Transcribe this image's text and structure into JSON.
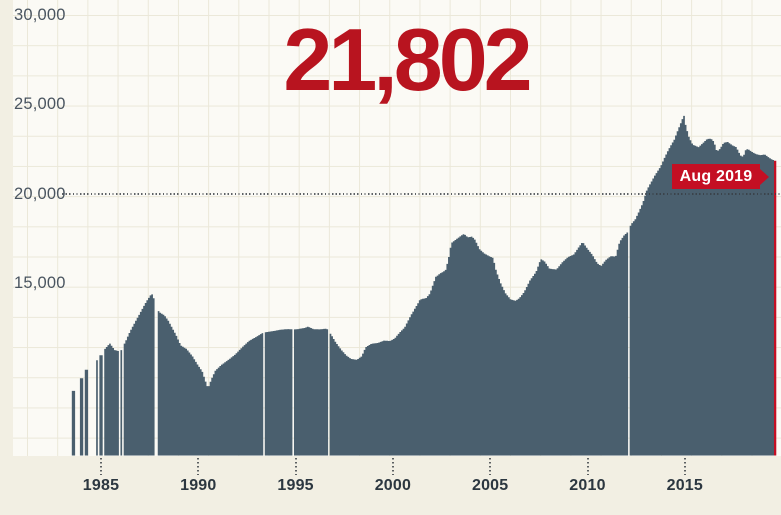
{
  "headline": {
    "value": "21,802",
    "color": "#b8141f"
  },
  "annotation": {
    "label": "Aug 2019",
    "color": "#c40f23",
    "text_color": "#ffffff"
  },
  "colors": {
    "page_background": "#f2efe3",
    "plot_background": "#fbfaf5",
    "grid": "#ebe8d9",
    "bar": "#4a5f6e",
    "highlight": "#c40f23",
    "y_label": "#4a5560",
    "x_label": "#2c3740"
  },
  "chart_data": {
    "type": "area",
    "title": "21,802",
    "x_unit": "year (monthly bars)",
    "y_ticks": [
      {
        "label": "30,000",
        "value": 30000
      },
      {
        "label": "25,000",
        "value": 25000
      },
      {
        "label": "20,000",
        "value": 20000
      },
      {
        "label": "15,000",
        "value": 15000
      }
    ],
    "x_ticks": [
      {
        "label": "1985",
        "value": 1985
      },
      {
        "label": "1990",
        "value": 1990
      },
      {
        "label": "1995",
        "value": 1995
      },
      {
        "label": "2000",
        "value": 2000
      },
      {
        "label": "2005",
        "value": 2005
      },
      {
        "label": "2010",
        "value": 2010
      },
      {
        "label": "2015",
        "value": 2015
      }
    ],
    "reference_value": 20000,
    "ylim": [
      5370,
      30840
    ],
    "domain": [
      1983.5,
      2019.7
    ],
    "last_point": {
      "x": 2019.625,
      "label": "Aug 2019",
      "value": 21802
    },
    "legend": "none",
    "grid": "on",
    "gaps": [
      [
        1983.67,
        1983.94
      ],
      [
        1984.1,
        1984.15
      ],
      [
        1984.35,
        1984.71
      ],
      [
        1984.85,
        1984.9
      ],
      [
        1985.09,
        1985.185
      ],
      [
        1985.93,
        1985.99
      ],
      [
        1986.1,
        1986.16
      ],
      [
        1987.77,
        1987.945
      ],
      [
        1993.335,
        1993.395
      ],
      [
        1994.845,
        1994.915
      ],
      [
        1996.68,
        1996.735
      ],
      [
        2012.06,
        2012.155
      ]
    ],
    "keypoints": [
      [
        1983.48,
        8960
      ],
      [
        1983.7,
        8960
      ],
      [
        1983.95,
        9670
      ],
      [
        1984.13,
        9670
      ],
      [
        1984.17,
        10150
      ],
      [
        1984.34,
        10150
      ],
      [
        1984.72,
        10680
      ],
      [
        1984.91,
        10680
      ],
      [
        1984.94,
        10960
      ],
      [
        1985.08,
        10960
      ],
      [
        1985.2,
        11300
      ],
      [
        1985.45,
        11620
      ],
      [
        1985.7,
        11250
      ],
      [
        1986.0,
        11150
      ],
      [
        1986.25,
        11700
      ],
      [
        1986.5,
        12300
      ],
      [
        1986.8,
        12900
      ],
      [
        1987.1,
        13500
      ],
      [
        1987.35,
        14000
      ],
      [
        1987.52,
        14260
      ],
      [
        1987.6,
        14430
      ],
      [
        1987.7,
        14150
      ],
      [
        1987.8,
        14100
      ],
      [
        1987.97,
        13380
      ],
      [
        1988.25,
        13200
      ],
      [
        1988.45,
        12900
      ],
      [
        1988.65,
        12500
      ],
      [
        1988.85,
        12100
      ],
      [
        1989.1,
        11500
      ],
      [
        1989.4,
        11300
      ],
      [
        1989.7,
        10900
      ],
      [
        1989.95,
        10450
      ],
      [
        1990.2,
        10050
      ],
      [
        1990.4,
        9400
      ],
      [
        1990.5,
        9110
      ],
      [
        1990.67,
        9600
      ],
      [
        1990.88,
        10100
      ],
      [
        1991.17,
        10400
      ],
      [
        1991.55,
        10700
      ],
      [
        1991.9,
        11000
      ],
      [
        1992.25,
        11400
      ],
      [
        1992.6,
        11750
      ],
      [
        1993.0,
        12000
      ],
      [
        1993.3,
        12200
      ],
      [
        1993.5,
        12250
      ],
      [
        1993.8,
        12300
      ],
      [
        1994.2,
        12380
      ],
      [
        1994.6,
        12420
      ],
      [
        1995.0,
        12400
      ],
      [
        1995.45,
        12480
      ],
      [
        1995.65,
        12560
      ],
      [
        1995.9,
        12420
      ],
      [
        1996.25,
        12400
      ],
      [
        1996.6,
        12450
      ],
      [
        1996.8,
        12150
      ],
      [
        1997.05,
        11700
      ],
      [
        1997.35,
        11250
      ],
      [
        1997.6,
        10950
      ],
      [
        1997.85,
        10750
      ],
      [
        1998.15,
        10700
      ],
      [
        1998.4,
        10900
      ],
      [
        1998.6,
        11400
      ],
      [
        1998.9,
        11600
      ],
      [
        1999.25,
        11650
      ],
      [
        1999.55,
        11780
      ],
      [
        1999.85,
        11750
      ],
      [
        2000.1,
        11900
      ],
      [
        2000.35,
        12230
      ],
      [
        2000.6,
        12500
      ],
      [
        2000.9,
        13140
      ],
      [
        2001.15,
        13600
      ],
      [
        2001.4,
        14080
      ],
      [
        2001.7,
        14150
      ],
      [
        2001.9,
        14400
      ],
      [
        2002.2,
        15340
      ],
      [
        2002.45,
        15550
      ],
      [
        2002.7,
        15700
      ],
      [
        2002.85,
        16300
      ],
      [
        2003.0,
        17230
      ],
      [
        2003.2,
        17400
      ],
      [
        2003.45,
        17600
      ],
      [
        2003.65,
        17750
      ],
      [
        2003.85,
        17550
      ],
      [
        2004.05,
        17600
      ],
      [
        2004.2,
        17450
      ],
      [
        2004.45,
        16900
      ],
      [
        2004.7,
        16650
      ],
      [
        2004.95,
        16500
      ],
      [
        2005.15,
        16400
      ],
      [
        2005.3,
        15700
      ],
      [
        2005.55,
        14950
      ],
      [
        2005.8,
        14400
      ],
      [
        2006.05,
        14080
      ],
      [
        2006.3,
        14000
      ],
      [
        2006.5,
        14150
      ],
      [
        2006.75,
        14500
      ],
      [
        2007.05,
        15160
      ],
      [
        2007.35,
        15600
      ],
      [
        2007.6,
        16340
      ],
      [
        2007.8,
        16200
      ],
      [
        2008.05,
        15800
      ],
      [
        2008.4,
        15750
      ],
      [
        2008.7,
        16150
      ],
      [
        2009.0,
        16450
      ],
      [
        2009.3,
        16600
      ],
      [
        2009.55,
        17000
      ],
      [
        2009.75,
        17300
      ],
      [
        2009.97,
        16950
      ],
      [
        2010.25,
        16570
      ],
      [
        2010.5,
        16100
      ],
      [
        2010.7,
        15950
      ],
      [
        2010.95,
        16300
      ],
      [
        2011.2,
        16500
      ],
      [
        2011.45,
        16480
      ],
      [
        2011.65,
        17300
      ],
      [
        2011.9,
        17700
      ],
      [
        2012.03,
        17800
      ],
      [
        2012.25,
        18300
      ],
      [
        2012.45,
        18550
      ],
      [
        2012.65,
        19000
      ],
      [
        2012.85,
        19500
      ],
      [
        2013.05,
        20200
      ],
      [
        2013.25,
        20600
      ],
      [
        2013.45,
        21000
      ],
      [
        2013.75,
        21500
      ],
      [
        2014.0,
        22100
      ],
      [
        2014.25,
        22640
      ],
      [
        2014.45,
        23000
      ],
      [
        2014.65,
        23560
      ],
      [
        2014.85,
        24100
      ],
      [
        2014.95,
        24400
      ],
      [
        2015.05,
        23800
      ],
      [
        2015.2,
        23200
      ],
      [
        2015.4,
        22750
      ],
      [
        2015.7,
        22600
      ],
      [
        2015.95,
        22850
      ],
      [
        2016.15,
        23060
      ],
      [
        2016.35,
        23080
      ],
      [
        2016.5,
        22900
      ],
      [
        2016.65,
        22350
      ],
      [
        2016.8,
        22500
      ],
      [
        2017.0,
        22850
      ],
      [
        2017.2,
        22900
      ],
      [
        2017.45,
        22700
      ],
      [
        2017.65,
        22600
      ],
      [
        2017.85,
        22150
      ],
      [
        2018.0,
        22050
      ],
      [
        2018.15,
        22500
      ],
      [
        2018.3,
        22450
      ],
      [
        2018.5,
        22300
      ],
      [
        2018.7,
        22200
      ],
      [
        2018.9,
        22150
      ],
      [
        2019.1,
        22200
      ],
      [
        2019.35,
        22000
      ],
      [
        2019.5,
        21900
      ],
      [
        2019.62,
        21850
      ],
      [
        2019.67,
        21802
      ]
    ]
  }
}
